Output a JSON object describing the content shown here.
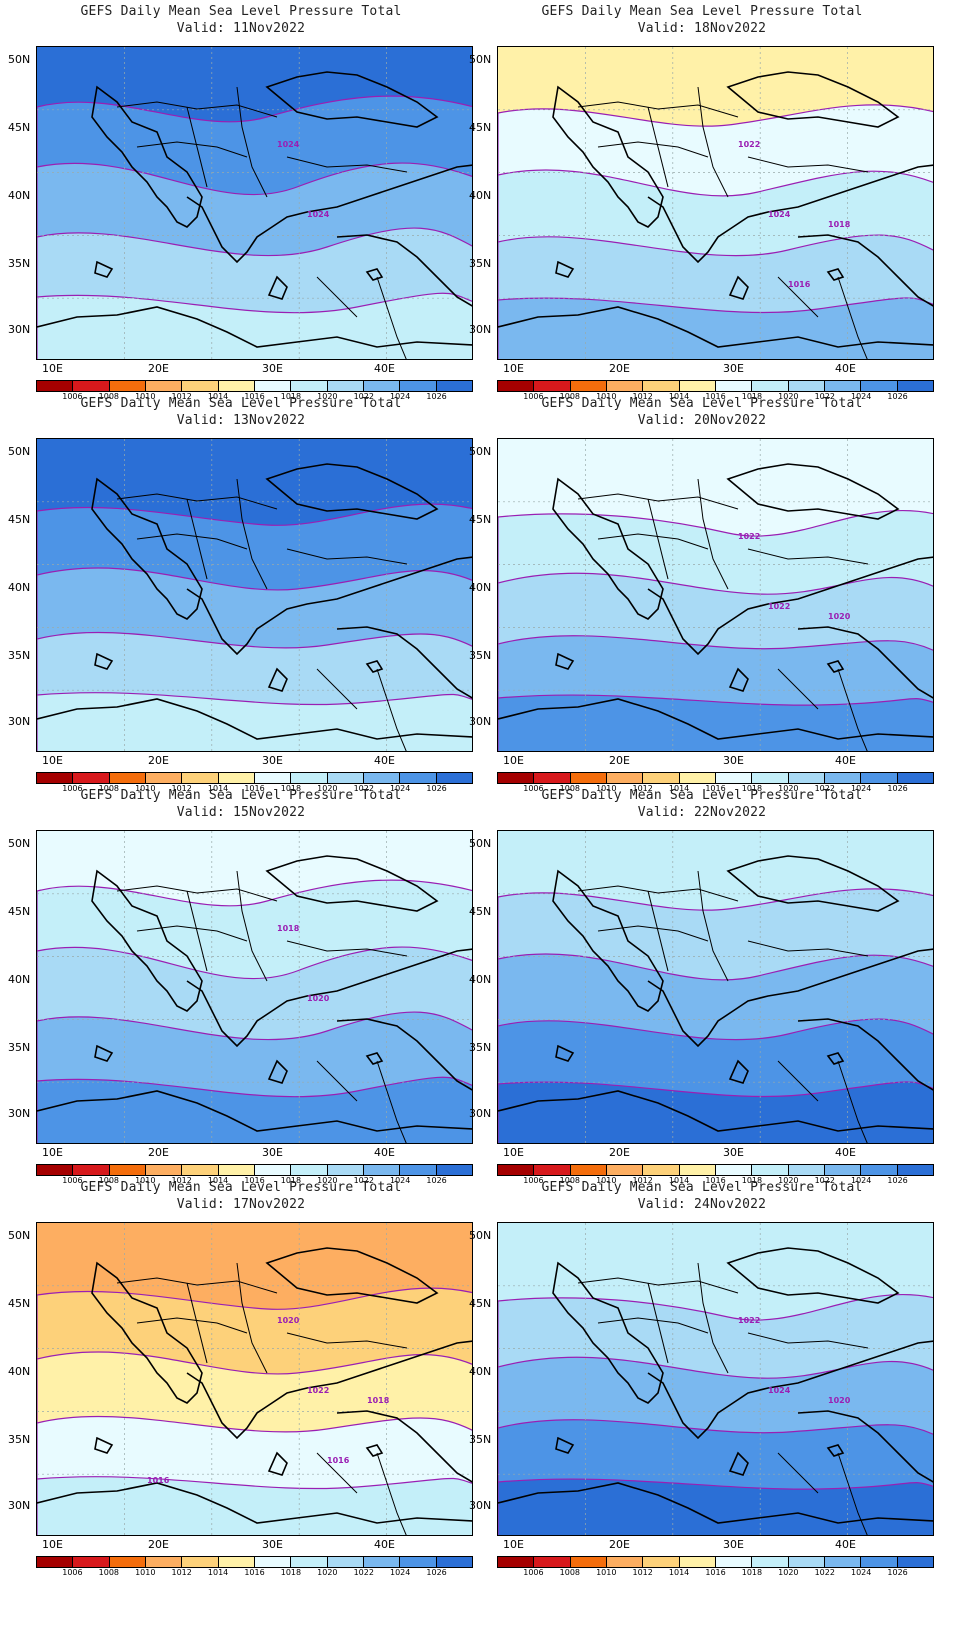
{
  "figure": {
    "title": "GEFS Daily Mean Sea Level Pressure Total",
    "y_ticks": [
      "50N",
      "45N",
      "40N",
      "35N",
      "30N"
    ],
    "x_ticks": [
      "10E",
      "20E",
      "30E",
      "40E"
    ],
    "colorbar": {
      "labels": [
        "1006",
        "1008",
        "1010",
        "1012",
        "1014",
        "1016",
        "1018",
        "1020",
        "1022",
        "1024",
        "1026"
      ],
      "colors": [
        "#a50000",
        "#d7191c",
        "#f46d0c",
        "#fdae61",
        "#fdd17a",
        "#fff1a8",
        "#e8fbff",
        "#c4eff9",
        "#a9daf5",
        "#7ab8ef",
        "#4d94e6",
        "#2b6fd6"
      ]
    },
    "contour_color": "#9a1fb3",
    "coast_color": "#000000"
  },
  "panels": [
    {
      "valid": "Valid: 11Nov2022",
      "contour_labels": [
        "1024",
        "1024"
      ],
      "base_level": "1026",
      "notes_levels": [
        "1026",
        "1024",
        "1022",
        "1020",
        "1018",
        "1016"
      ]
    },
    {
      "valid": "Valid: 18Nov2022",
      "contour_labels": [
        "1024",
        "1022",
        "1018",
        "1016"
      ],
      "base_level": "1018",
      "notes_levels": [
        "1014",
        "1016",
        "1018",
        "1020",
        "1022",
        "1024"
      ]
    },
    {
      "valid": "Valid: 13Nov2022",
      "contour_labels": [],
      "base_level": "1026",
      "notes_levels": [
        "1026",
        "1024",
        "1022",
        "1020",
        "1018",
        "1016"
      ]
    },
    {
      "valid": "Valid: 20Nov2022",
      "contour_labels": [
        "1022",
        "1022",
        "1020"
      ],
      "base_level": "1018",
      "notes_levels": [
        "1016",
        "1018",
        "1020",
        "1022",
        "1024",
        "1026"
      ]
    },
    {
      "valid": "Valid: 15Nov2022",
      "contour_labels": [
        "1020",
        "1018"
      ],
      "base_level": "1018",
      "notes_levels": [
        "1016",
        "1018",
        "1020",
        "1022",
        "1024"
      ]
    },
    {
      "valid": "Valid: 22Nov2022",
      "contour_labels": [],
      "base_level": "1020",
      "notes_levels": [
        "1018",
        "1020",
        "1022",
        "1024",
        "1026"
      ]
    },
    {
      "valid": "Valid: 17Nov2022",
      "contour_labels": [
        "1022",
        "1020",
        "1018",
        "1016",
        "1016"
      ],
      "base_level": "1016",
      "notes_levels": [
        "1010",
        "1012",
        "1014",
        "1016",
        "1018",
        "1020",
        "1022",
        "1024",
        "1026"
      ]
    },
    {
      "valid": "Valid: 24Nov2022",
      "contour_labels": [
        "1024",
        "1022",
        "1020"
      ],
      "base_level": "1022",
      "notes_levels": [
        "1018",
        "1020",
        "1022",
        "1024",
        "1026"
      ]
    }
  ]
}
